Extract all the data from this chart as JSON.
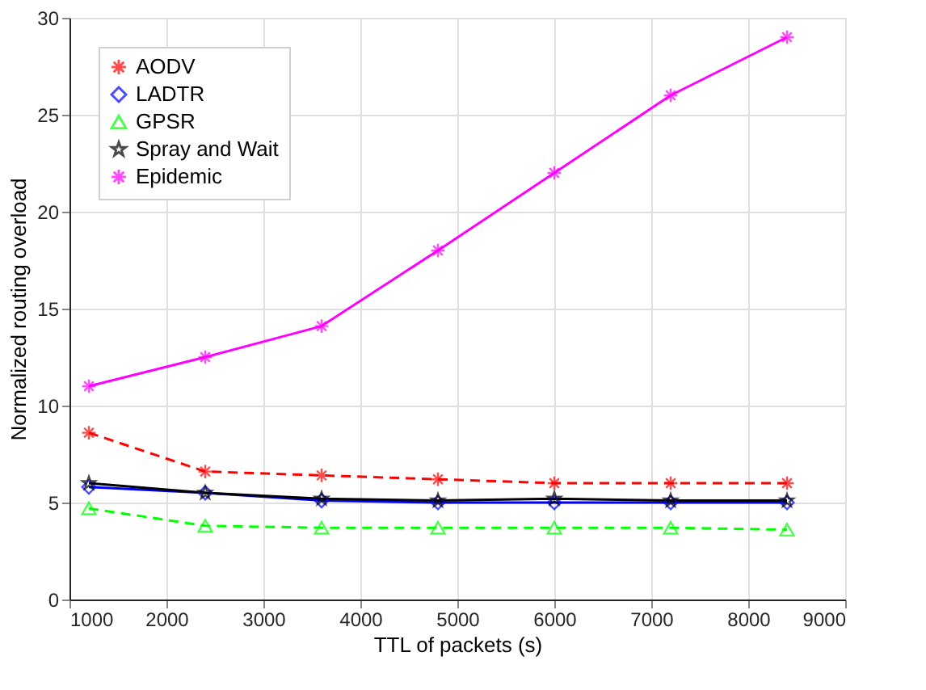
{
  "chart_data": {
    "type": "line",
    "xlabel": "TTL of packets (s)",
    "ylabel": "Normalized routing overload",
    "x": [
      1200,
      2400,
      3600,
      4800,
      6000,
      7200,
      8400
    ],
    "xlim": [
      1000,
      9000
    ],
    "xticks": [
      1000,
      2000,
      3000,
      4000,
      5000,
      6000,
      7000,
      8000,
      9000
    ],
    "ylim": [
      0,
      30
    ],
    "yticks": [
      0,
      5,
      10,
      15,
      20,
      25,
      30
    ],
    "grid": true,
    "legend": "top left",
    "series": [
      {
        "name": "AODV",
        "color": "#ff0000",
        "marker": "cross",
        "line_style": "dashed",
        "values": [
          8.6,
          6.6,
          6.4,
          6.2,
          6.0,
          6.0,
          6.0
        ]
      },
      {
        "name": "LADTR",
        "color": "#0000ff",
        "marker": "diamond",
        "line_style": "solid",
        "values": [
          5.8,
          5.5,
          5.1,
          5.0,
          5.0,
          5.0,
          5.0
        ]
      },
      {
        "name": "GPSR",
        "color": "#00ff00",
        "marker": "triangle",
        "line_style": "dashed",
        "values": [
          4.7,
          3.8,
          3.7,
          3.7,
          3.7,
          3.7,
          3.6
        ]
      },
      {
        "name": "Spray and Wait",
        "color": "#000000",
        "marker": "star",
        "line_style": "solid",
        "values": [
          6.0,
          5.5,
          5.2,
          5.1,
          5.2,
          5.1,
          5.1
        ]
      },
      {
        "name": "Epidemic",
        "color": "#ff00ff",
        "marker": "cross",
        "line_style": "solid",
        "values": [
          11,
          12.5,
          14.1,
          18,
          22,
          26,
          29
        ]
      }
    ]
  }
}
